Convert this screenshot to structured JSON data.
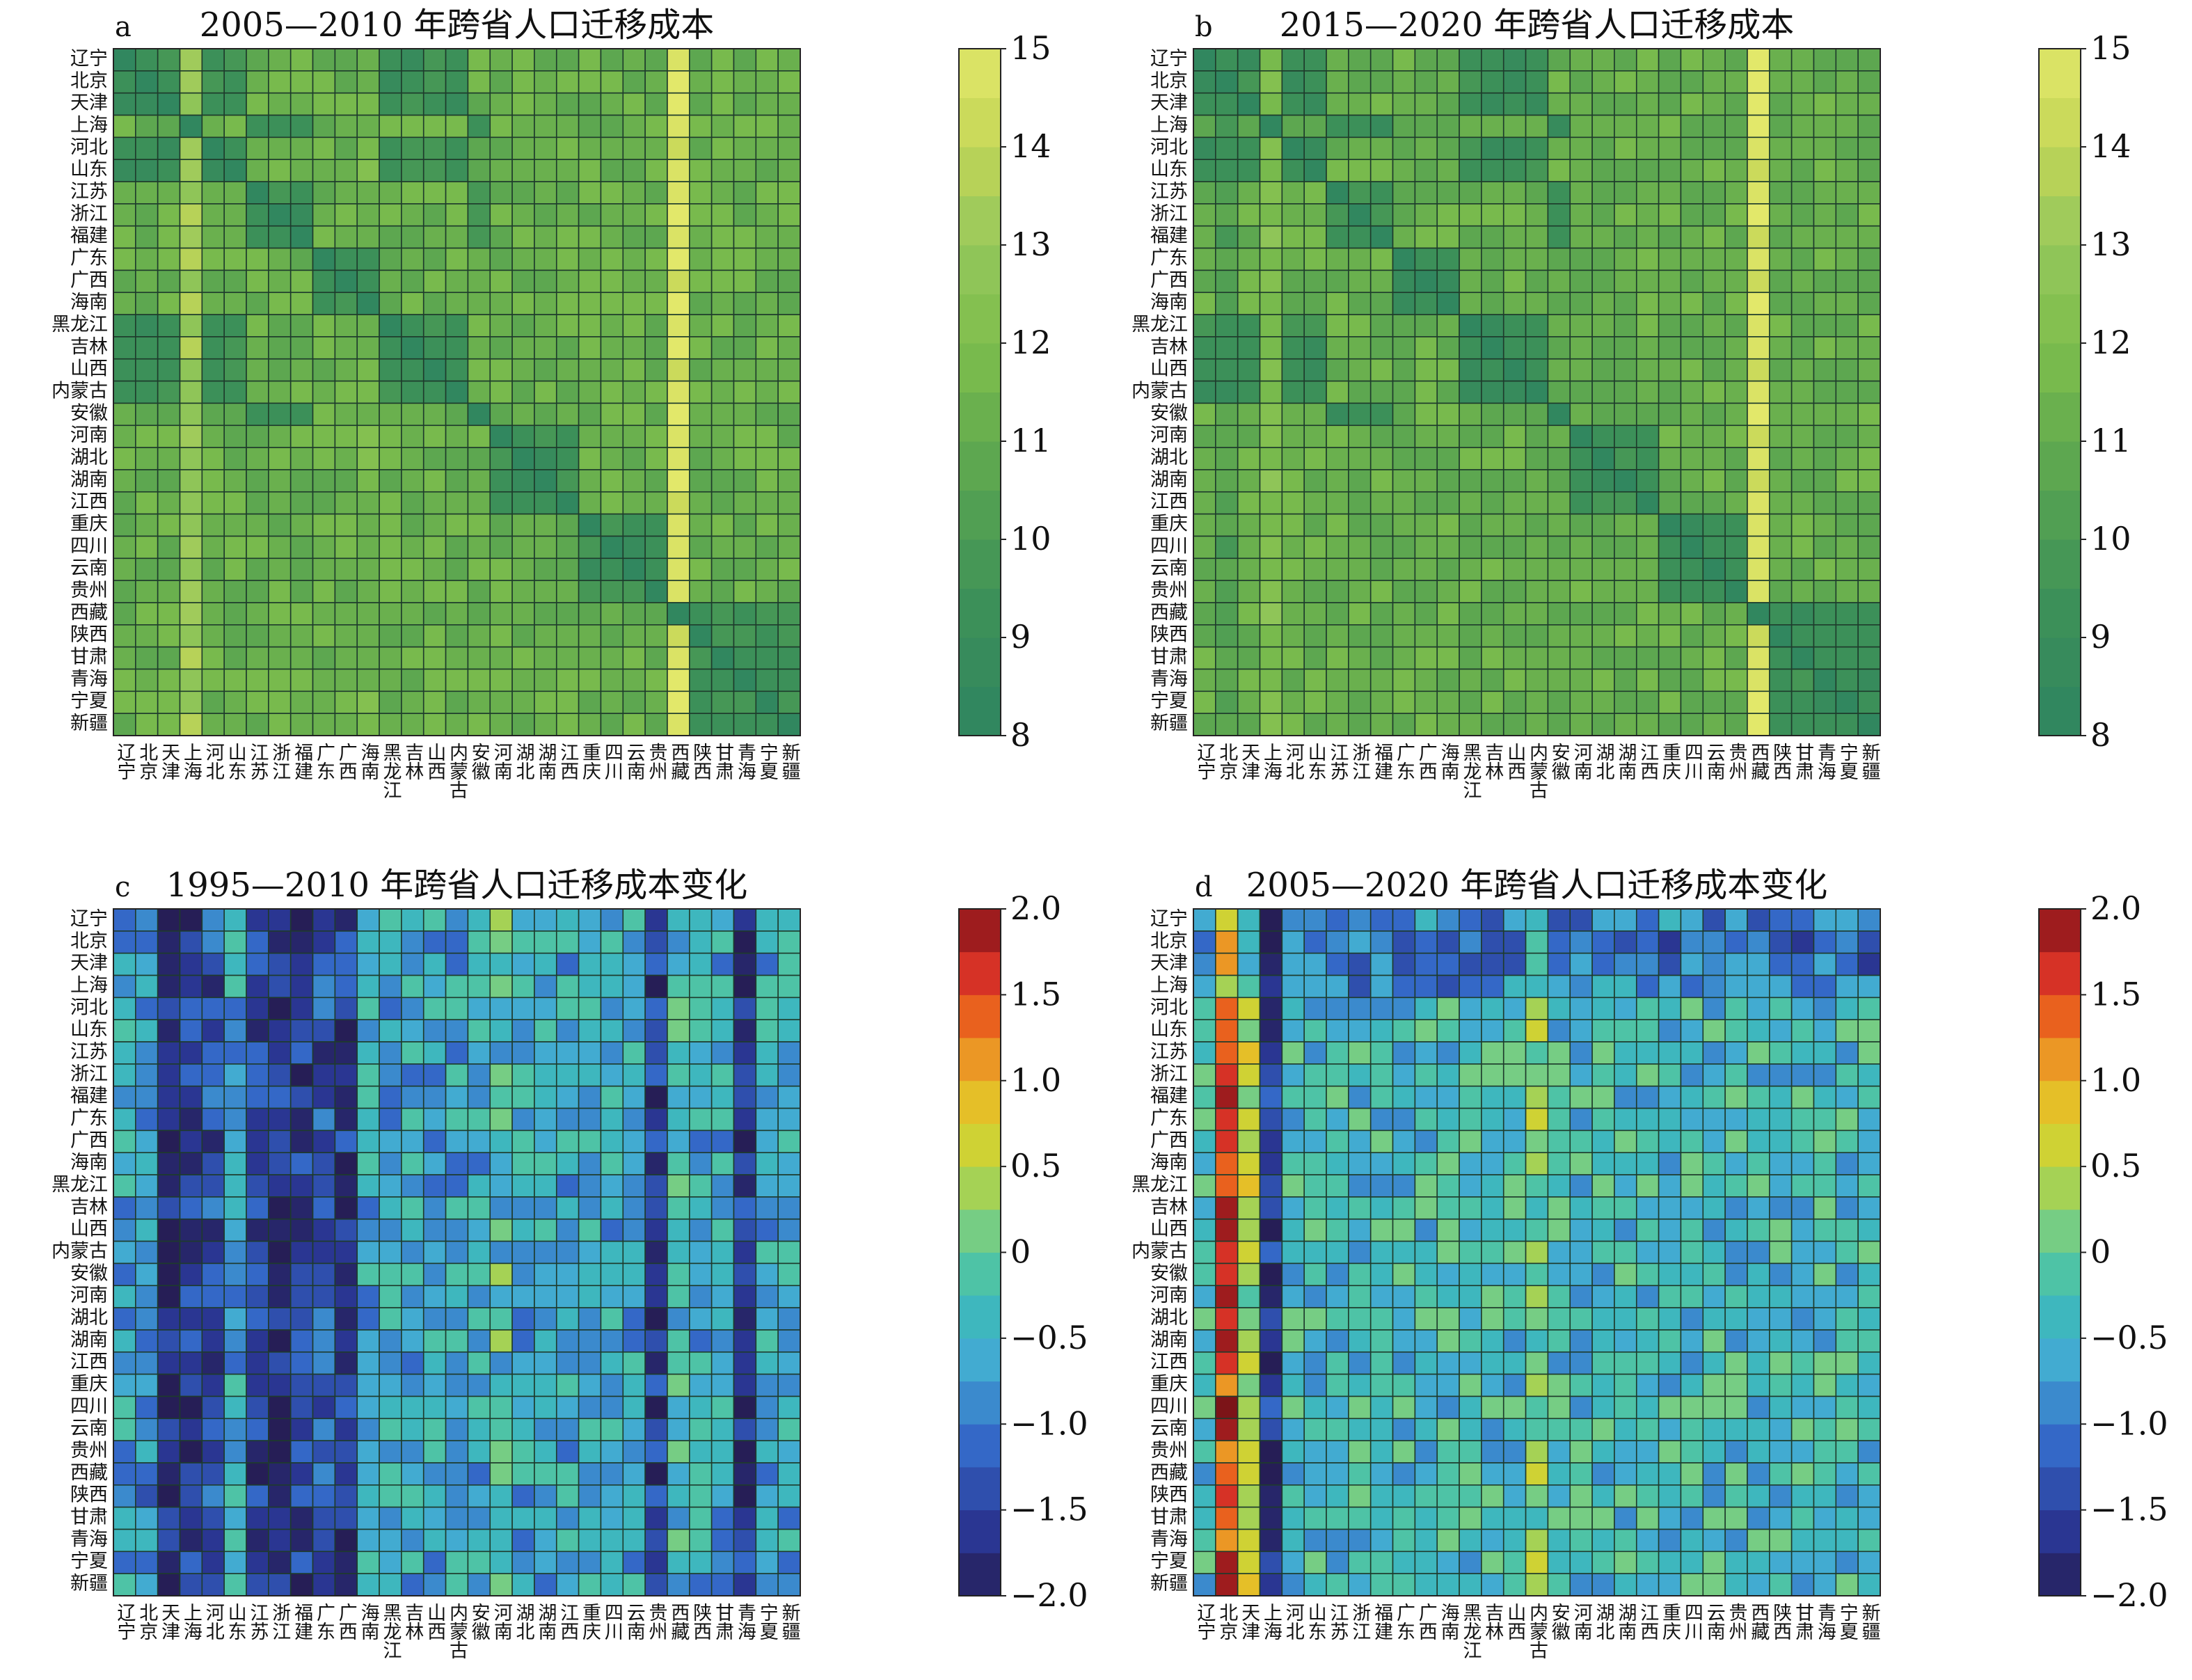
{
  "figure": {
    "provinces": [
      "辽宁",
      "北京",
      "天津",
      "上海",
      "河北",
      "山东",
      "江苏",
      "浙江",
      "福建",
      "广东",
      "广西",
      "海南",
      "黑龙江",
      "吉林",
      "山西",
      "内蒙古",
      "安徽",
      "河南",
      "湖北",
      "湖南",
      "江西",
      "重庆",
      "四川",
      "云南",
      "贵州",
      "西藏",
      "陕西",
      "甘肃",
      "青海",
      "宁夏",
      "新疆"
    ]
  },
  "chart_data": [
    {
      "type": "heatmap",
      "panel": "a",
      "title": "2005—2010 年跨省人口迁移成本",
      "colorbar": {
        "min": 8,
        "max": 15,
        "ticks": [
          "8",
          "9",
          "10",
          "11",
          "12",
          "13",
          "14",
          "15"
        ],
        "colormap": "green-yellow"
      },
      "pattern": {
        "base": 11.3,
        "column_offsets": {
          "上海": 1.8,
          "西藏": 3.6,
          "海南": 0.3
        },
        "same_province": 8.0,
        "regional_neighbors": 9.3
      }
    },
    {
      "type": "heatmap",
      "panel": "b",
      "title": "2015—2020 年跨省人口迁移成本",
      "colorbar": {
        "min": 8,
        "max": 15,
        "ticks": [
          "8",
          "9",
          "10",
          "11",
          "12",
          "13",
          "14",
          "15"
        ],
        "colormap": "green-yellow"
      },
      "pattern": {
        "base": 11.1,
        "column_offsets": {
          "上海": 1.0,
          "西藏": 3.7,
          "北京": -0.8
        },
        "same_province": 8.0,
        "regional_neighbors": 9.2
      }
    },
    {
      "type": "heatmap",
      "panel": "c",
      "title": "1995—2010 年跨省人口迁移成本变化",
      "colorbar": {
        "min": -2.0,
        "max": 2.0,
        "ticks": [
          "2.0",
          "1.5",
          "1.0",
          "0.5",
          "0",
          "−0.5",
          "−1.0",
          "−1.5",
          "−2.0"
        ],
        "colormap": "parula-red"
      },
      "pattern": {
        "base": -0.55,
        "column_offsets": {
          "北京": -0.2,
          "天津": -1.3,
          "上海": -1.1,
          "河北": -0.8,
          "江苏": -1.0,
          "浙江": -1.2,
          "福建": -1.0,
          "广东": -0.7,
          "广西": -1.0,
          "贵州": -1.0,
          "青海": -1.2,
          "西藏": 0.2,
          "河南": 0.3
        }
      }
    },
    {
      "type": "heatmap",
      "panel": "d",
      "title": "2005—2020 年跨省人口迁移成本变化",
      "colorbar": {
        "min": -2.0,
        "max": 2.0,
        "ticks": [
          "2.0",
          "1.5",
          "1.0",
          "0.5",
          "0",
          "−0.5",
          "−1.0",
          "−1.5",
          "−2.0"
        ],
        "colormap": "parula-red"
      },
      "pattern": {
        "base": -0.35,
        "column_offsets": {
          "北京": 1.9,
          "天津": 0.7,
          "上海": -1.3,
          "内蒙古": 0.6
        },
        "row_offsets": {
          "辽宁": -0.6,
          "北京": -0.7,
          "天津": -0.7,
          "上海": -0.6
        }
      }
    }
  ]
}
